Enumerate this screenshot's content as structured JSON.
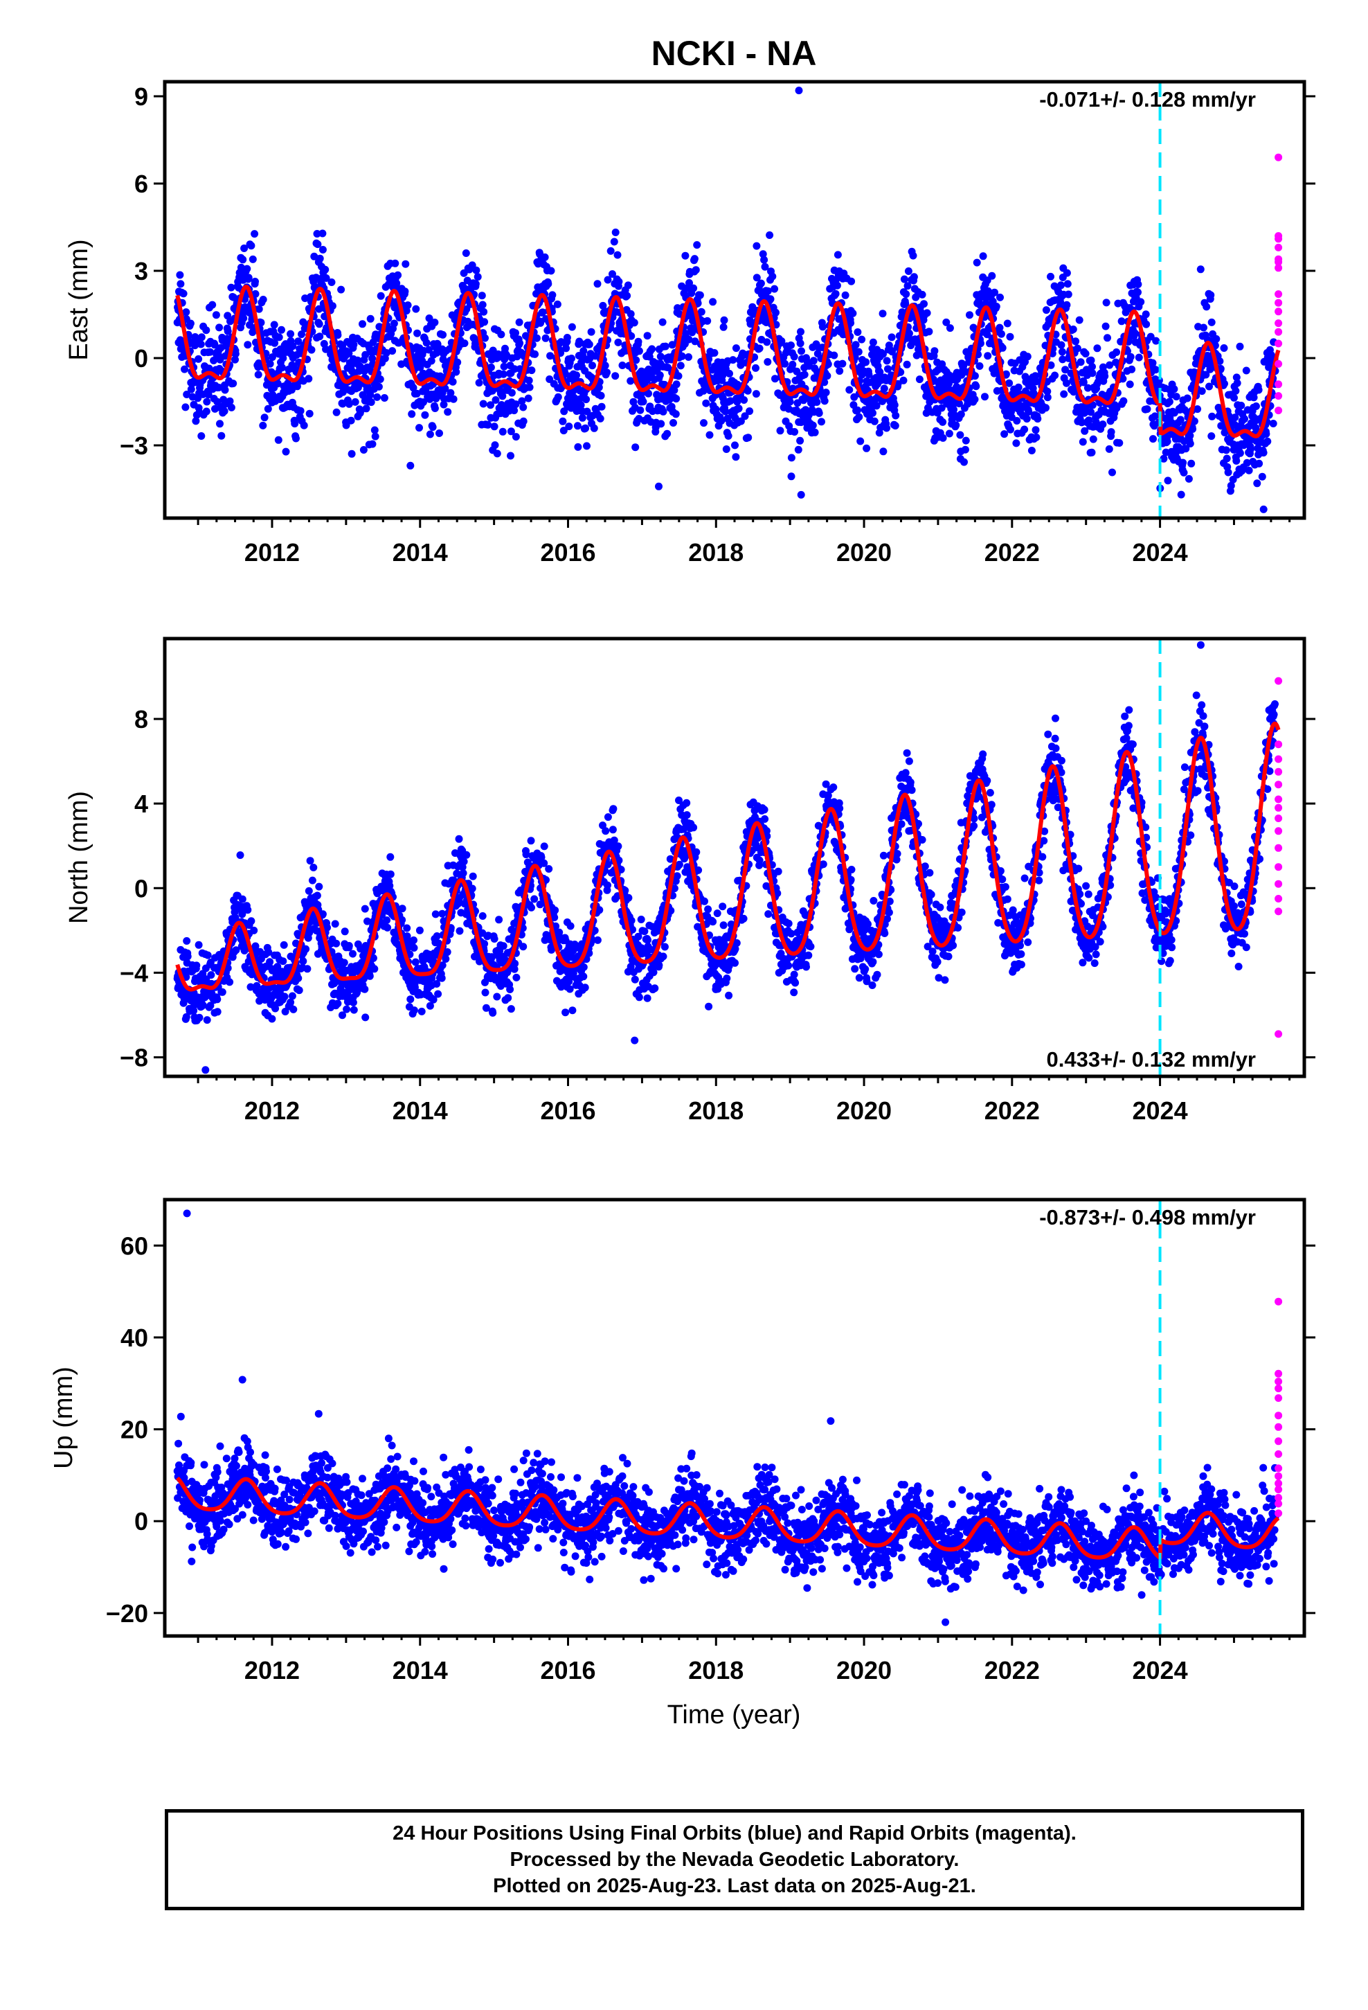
{
  "chart_data": {
    "type": "scatter",
    "title": "NCKI - NA",
    "xlabel": "Time (year)",
    "x_ticks": [
      2012,
      2014,
      2016,
      2018,
      2020,
      2022,
      2024
    ],
    "xlim": [
      2010.55,
      2025.95
    ],
    "event_line": {
      "x": 2024.0,
      "color": "#00e5ff",
      "style": "dashed"
    },
    "colors": {
      "final_orbits": "#0000ff",
      "rapid_orbits": "#ff00ff",
      "model": "#ff0000"
    },
    "panels": [
      {
        "ylabel": "East (mm)",
        "ylim": [
          -5.5,
          9.5
        ],
        "y_ticks": [
          -3,
          0,
          3,
          6,
          9
        ],
        "rate_label": "-0.071+/- 0.128 mm/yr",
        "rate_position": "top-right",
        "model": {
          "offset": -0.1,
          "trend": -0.071,
          "trend_ref": 2018.0,
          "annual_amp": 1.5,
          "annual_phase_peak": 0.65,
          "semiannual_amp": 0.6,
          "post_event_offset": -1.0
        },
        "noise_sd": 0.9,
        "outliers": [
          [
            2019.12,
            9.2
          ],
          [
            2025.4,
            -5.2
          ],
          [
            2019.15,
            -4.7
          ]
        ],
        "rapid_points": [
          6.9,
          4.2,
          4.1,
          3.8,
          3.4,
          3.3,
          3.1,
          2.2,
          1.9,
          1.6,
          1.2,
          0.9,
          0.5,
          -0.2,
          -0.9,
          -1.3,
          -1.8
        ]
      },
      {
        "ylabel": "North (mm)",
        "ylim": [
          -8.9,
          11.8
        ],
        "y_ticks": [
          -8,
          -4,
          0,
          4,
          8
        ],
        "rate_label": "0.433+/- 0.132 mm/yr",
        "rate_position": "bottom-right",
        "model": {
          "offset": -0.8,
          "trend": 0.433,
          "trend_ref": 2018.0,
          "annual_amp": 3.0,
          "annual_phase_peak": 0.55,
          "semiannual_amp": 0.5,
          "post_event_offset": 0.0,
          "amp_growth": 0.08
        },
        "noise_sd": 0.85,
        "outliers": [
          [
            2024.55,
            11.5
          ],
          [
            2011.1,
            -8.6
          ],
          [
            2016.9,
            -7.2
          ],
          [
            2017.9,
            -5.6
          ]
        ],
        "rapid_points": [
          9.8,
          6.8,
          6.1,
          5.5,
          4.9,
          4.2,
          3.8,
          3.3,
          2.7,
          1.9,
          1.0,
          0.2,
          -0.5,
          -1.1,
          -6.9
        ]
      },
      {
        "ylabel": "Up (mm)",
        "ylim": [
          -25,
          70
        ],
        "y_ticks": [
          -20,
          0,
          20,
          40,
          60
        ],
        "rate_label": "-0.873+/- 0.498 mm/yr",
        "rate_position": "top-right",
        "model": {
          "offset": -0.5,
          "trend": -0.873,
          "trend_ref": 2018.0,
          "annual_amp": 3.5,
          "annual_phase_peak": 0.65,
          "semiannual_amp": 0.6,
          "post_event_offset": 4.0
        },
        "noise_sd": 4.0,
        "outliers": [
          [
            2010.85,
            67.0
          ],
          [
            2011.6,
            30.8
          ],
          [
            2019.55,
            21.8
          ],
          [
            2021.1,
            -22.0
          ]
        ],
        "rapid_points": [
          47.8,
          32.1,
          30.4,
          28.9,
          26.8,
          23.0,
          20.5,
          17.4,
          14.6,
          11.5,
          9.8,
          8.2,
          6.9,
          5.1,
          3.8,
          1.7
        ]
      }
    ]
  },
  "footer": {
    "line1": "24 Hour Positions Using Final Orbits (blue) and Rapid Orbits (magenta).",
    "line2": "Processed by the Nevada Geodetic Laboratory.",
    "line3": "Plotted on 2025-Aug-23. Last data on 2025-Aug-21."
  }
}
